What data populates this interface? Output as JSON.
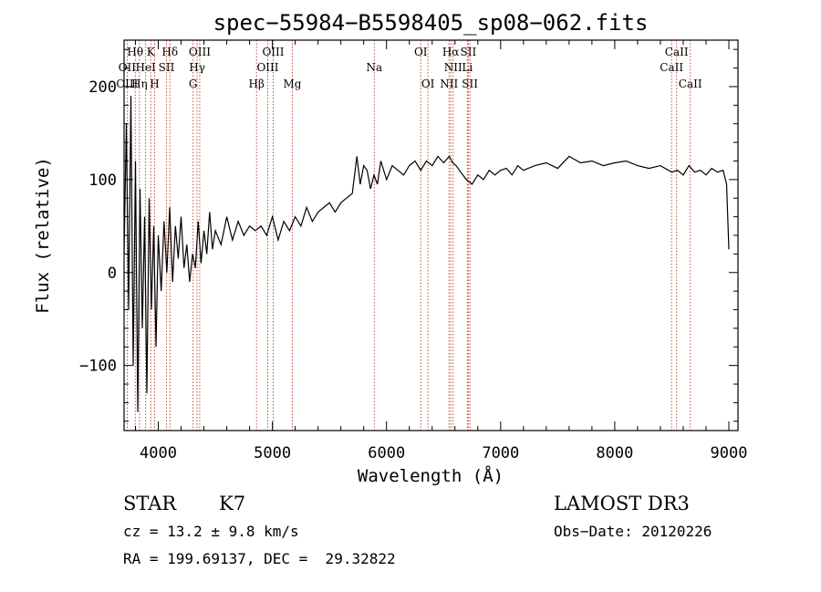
{
  "chart_data": {
    "type": "line",
    "title": "spec−55984−B5598405_sp08−062.fits",
    "xlabel": "Wavelength (Å)",
    "ylabel": "Flux (relative)",
    "xlim": [
      3700,
      9080
    ],
    "ylim": [
      -170,
      250
    ],
    "xticks": [
      4000,
      5000,
      6000,
      7000,
      8000,
      9000
    ],
    "yticks": [
      -100,
      0,
      100,
      200
    ],
    "ytick_labels": [
      "−100",
      "0",
      "100",
      "200"
    ],
    "series": [
      {
        "name": "spectrum",
        "x": [
          3700,
          3720,
          3740,
          3760,
          3780,
          3800,
          3820,
          3840,
          3860,
          3880,
          3900,
          3920,
          3940,
          3960,
          3980,
          4000,
          4025,
          4050,
          4075,
          4100,
          4125,
          4150,
          4175,
          4200,
          4225,
          4250,
          4275,
          4300,
          4325,
          4350,
          4375,
          4400,
          4425,
          4450,
          4475,
          4500,
          4550,
          4600,
          4650,
          4700,
          4750,
          4800,
          4850,
          4900,
          4950,
          5000,
          5050,
          5100,
          5150,
          5200,
          5250,
          5300,
          5350,
          5400,
          5450,
          5500,
          5550,
          5600,
          5650,
          5700,
          5740,
          5770,
          5800,
          5830,
          5860,
          5890,
          5920,
          5950,
          6000,
          6050,
          6100,
          6150,
          6200,
          6250,
          6300,
          6350,
          6400,
          6450,
          6500,
          6550,
          6580,
          6610,
          6650,
          6700,
          6750,
          6800,
          6850,
          6900,
          6950,
          7000,
          7050,
          7100,
          7150,
          7200,
          7300,
          7400,
          7500,
          7600,
          7700,
          7800,
          7900,
          8000,
          8100,
          8200,
          8300,
          8400,
          8500,
          8550,
          8600,
          8650,
          8700,
          8750,
          8800,
          8850,
          8900,
          8950,
          8980,
          9000
        ],
        "values": [
          20,
          160,
          -40,
          190,
          -100,
          120,
          -150,
          90,
          -60,
          60,
          -130,
          80,
          -40,
          50,
          -80,
          40,
          -20,
          55,
          0,
          70,
          -10,
          50,
          15,
          60,
          5,
          30,
          -10,
          20,
          5,
          55,
          10,
          45,
          20,
          65,
          25,
          45,
          30,
          60,
          35,
          55,
          40,
          50,
          45,
          50,
          40,
          60,
          35,
          55,
          45,
          60,
          50,
          70,
          55,
          65,
          70,
          75,
          65,
          75,
          80,
          85,
          125,
          95,
          115,
          110,
          90,
          105,
          95,
          120,
          100,
          115,
          110,
          105,
          115,
          120,
          110,
          120,
          115,
          125,
          118,
          125,
          118,
          115,
          108,
          100,
          95,
          105,
          100,
          110,
          105,
          110,
          112,
          105,
          115,
          110,
          115,
          118,
          112,
          125,
          118,
          120,
          115,
          118,
          120,
          115,
          112,
          115,
          108,
          110,
          105,
          115,
          108,
          110,
          105,
          112,
          108,
          110,
          95,
          25
        ]
      }
    ],
    "spectral_lines": [
      {
        "label": "Hθ",
        "wavelength": 3798,
        "row": 0
      },
      {
        "label": "K",
        "wavelength": 3934,
        "row": 0
      },
      {
        "label": "Hδ",
        "wavelength": 4102,
        "row": 0
      },
      {
        "label": "OIII",
        "wavelength": 4363,
        "row": 0
      },
      {
        "label": "OIII",
        "wavelength": 5007,
        "row": 0
      },
      {
        "label": "OI",
        "wavelength": 6300,
        "row": 0
      },
      {
        "label": "Hα",
        "wavelength": 6563,
        "row": 0
      },
      {
        "label": "SII",
        "wavelength": 6717,
        "row": 0
      },
      {
        "label": "CaII",
        "wavelength": 8542,
        "row": 0
      },
      {
        "label": "OII",
        "wavelength": 3727,
        "row": 1
      },
      {
        "label": "HeI",
        "wavelength": 3889,
        "row": 1
      },
      {
        "label": "SII",
        "wavelength": 4072,
        "row": 1
      },
      {
        "label": "Hγ",
        "wavelength": 4340,
        "row": 1
      },
      {
        "label": "OIII",
        "wavelength": 4959,
        "row": 1
      },
      {
        "label": "Na",
        "wavelength": 5893,
        "row": 1
      },
      {
        "label": "NII",
        "wavelength": 6584,
        "row": 1
      },
      {
        "label": "Li",
        "wavelength": 6708,
        "row": 1
      },
      {
        "label": "CaII",
        "wavelength": 8498,
        "row": 1
      },
      {
        "label": "OIII",
        "wavelength": 3727,
        "row": 2
      },
      {
        "label": "Hη",
        "wavelength": 3835,
        "row": 2
      },
      {
        "label": "H",
        "wavelength": 3968,
        "row": 2
      },
      {
        "label": "G",
        "wavelength": 4305,
        "row": 2
      },
      {
        "label": "Hβ",
        "wavelength": 4861,
        "row": 2
      },
      {
        "label": "Mg",
        "wavelength": 5175,
        "row": 2
      },
      {
        "label": "OI",
        "wavelength": 6363,
        "row": 2
      },
      {
        "label": "NII",
        "wavelength": 6548,
        "row": 2
      },
      {
        "label": "SII",
        "wavelength": 6731,
        "row": 2
      },
      {
        "label": "CaII",
        "wavelength": 8662,
        "row": 2
      }
    ]
  },
  "info": {
    "object_class": "STAR",
    "subclass": "K7",
    "survey": "LAMOST DR3",
    "cz": "cz = 13.2 ± 9.8 km/s",
    "obs_date": "Obs−Date: 20120226",
    "coords": "RA = 199.69137, DEC =  29.32822"
  },
  "colors": {
    "axis": "#000000",
    "spectrum": "#000000",
    "lines": "#c0392b"
  }
}
